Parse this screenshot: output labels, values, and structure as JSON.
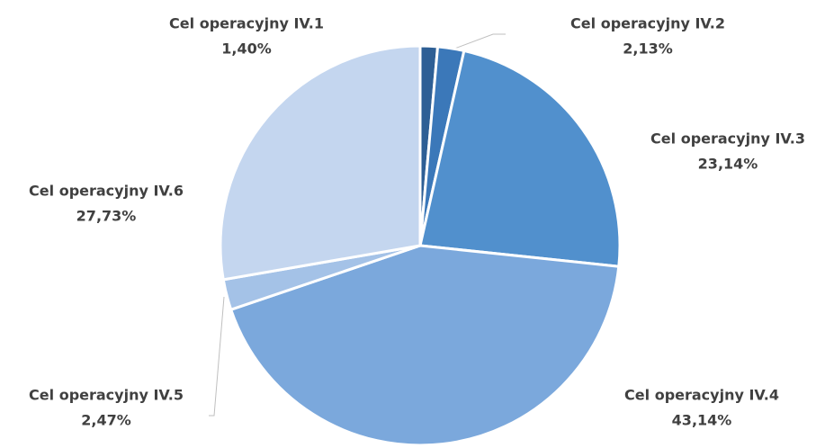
{
  "chart_data": {
    "type": "pie",
    "categories": [
      "Cel operacyjny IV.1",
      "Cel operacyjny IV.2",
      "Cel operacyjny IV.3",
      "Cel operacyjny IV.4",
      "Cel operacyjny IV.5",
      "Cel operacyjny IV.6"
    ],
    "values": [
      1.4,
      2.13,
      23.14,
      43.14,
      2.47,
      27.73
    ],
    "value_labels": [
      "1,40%",
      "2,13%",
      "23,14%",
      "43,14%",
      "2,47%",
      "27,73%"
    ],
    "colors": [
      "#2e5f95",
      "#3b78b9",
      "#5190cd",
      "#7ba8dc",
      "#a4c2e7",
      "#c4d6ef"
    ]
  }
}
